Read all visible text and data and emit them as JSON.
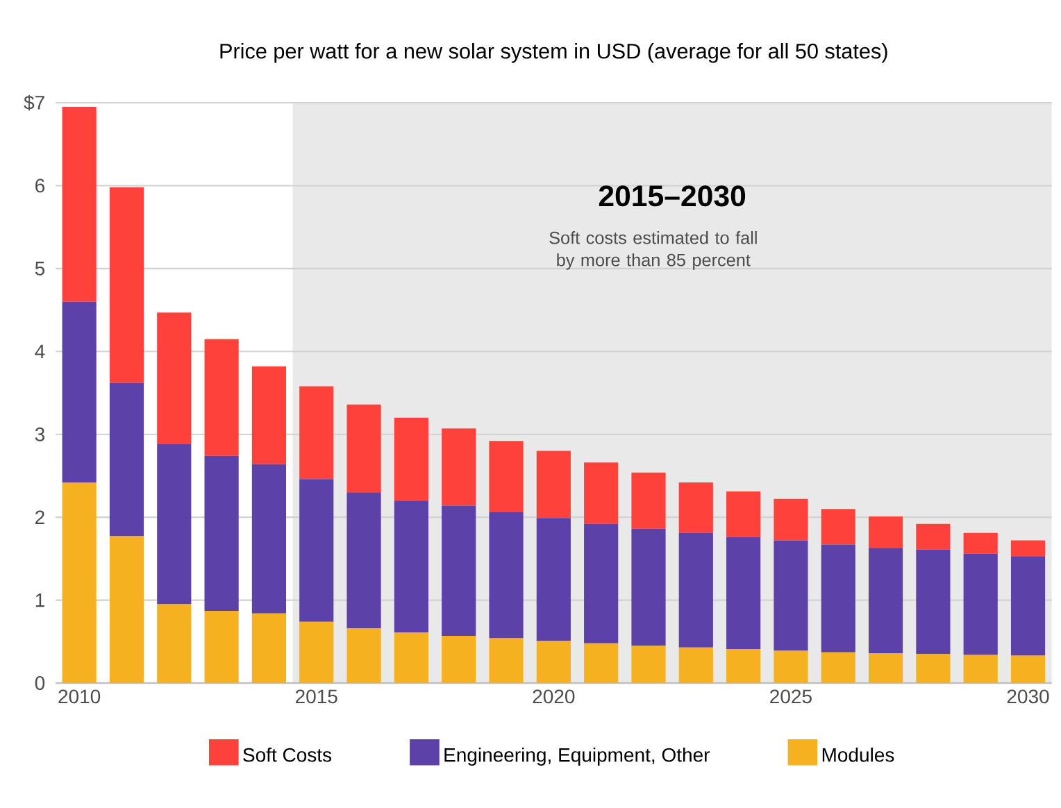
{
  "chart_data": {
    "type": "bar",
    "stacked": true,
    "title": "Price per watt for a new solar system in USD (average for all 50 states)",
    "categories": [
      "2010",
      null,
      null,
      null,
      null,
      "2015",
      null,
      null,
      null,
      null,
      "2020",
      null,
      null,
      null,
      null,
      "2025",
      null,
      null,
      null,
      null,
      "2030"
    ],
    "series": [
      {
        "name": "Modules",
        "color": "#f5b120",
        "values": [
          2.42,
          1.77,
          0.95,
          0.87,
          0.84,
          0.74,
          0.66,
          0.61,
          0.57,
          0.54,
          0.51,
          0.48,
          0.45,
          0.43,
          0.41,
          0.39,
          0.37,
          0.36,
          0.35,
          0.34,
          0.33
        ]
      },
      {
        "name": "Engineering, Equipment, Other",
        "color": "#5b41a8",
        "values": [
          2.18,
          1.85,
          1.93,
          1.87,
          1.8,
          1.72,
          1.64,
          1.59,
          1.57,
          1.52,
          1.48,
          1.44,
          1.41,
          1.38,
          1.35,
          1.33,
          1.3,
          1.27,
          1.26,
          1.22,
          1.2
        ]
      },
      {
        "name": "Soft Costs",
        "color": "#ff413c",
        "values": [
          2.35,
          2.36,
          1.59,
          1.41,
          1.18,
          1.12,
          1.06,
          1.0,
          0.93,
          0.86,
          0.81,
          0.74,
          0.68,
          0.61,
          0.55,
          0.5,
          0.43,
          0.38,
          0.31,
          0.25,
          0.19
        ]
      }
    ],
    "ylim": [
      0,
      7
    ],
    "yticks": [
      0,
      1,
      2,
      3,
      4,
      5,
      6,
      {
        "value": 7,
        "label": "$7"
      }
    ],
    "grid": "y",
    "legend": "bottom",
    "bands": [
      {
        "axis": "x",
        "from": "2015",
        "to": "2030",
        "label": "2015–2030",
        "color": "#e9e9e9"
      }
    ],
    "annotations": [
      "Soft costs estimated to fall by more than 85 percent"
    ]
  }
}
